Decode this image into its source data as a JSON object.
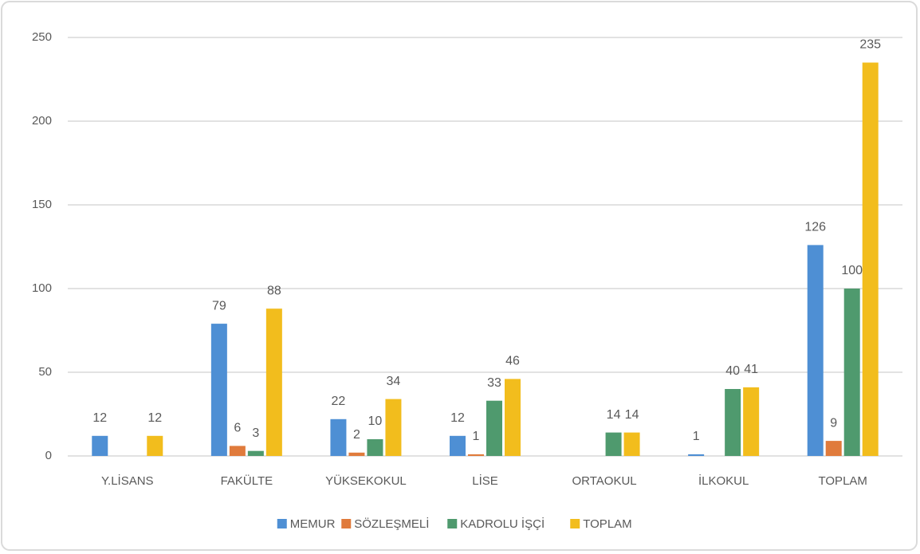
{
  "chart_data": {
    "type": "bar",
    "categories": [
      "Y.LİSANS",
      "FAKÜLTE",
      "YÜKSEKOKUL",
      "LİSE",
      "ORTAOKUL",
      "İLKOKUL",
      "TOPLAM"
    ],
    "series": [
      {
        "name": "MEMUR",
        "color": "#4e8fd4",
        "values": [
          12,
          79,
          22,
          12,
          null,
          1,
          126
        ]
      },
      {
        "name": "SÖZLEŞMELİ",
        "color": "#e07b3c",
        "values": [
          null,
          6,
          2,
          1,
          null,
          null,
          9
        ]
      },
      {
        "name": "KADROLU İŞÇİ",
        "color": "#4f9a6e",
        "values": [
          null,
          3,
          10,
          33,
          14,
          40,
          100
        ]
      },
      {
        "name": "TOPLAM",
        "color": "#f2bd1d",
        "values": [
          12,
          88,
          34,
          46,
          14,
          41,
          235
        ]
      }
    ],
    "ylim": [
      0,
      250
    ],
    "yticks": [
      0,
      50,
      100,
      150,
      200,
      250
    ],
    "grid": true,
    "legend": "bottom"
  }
}
